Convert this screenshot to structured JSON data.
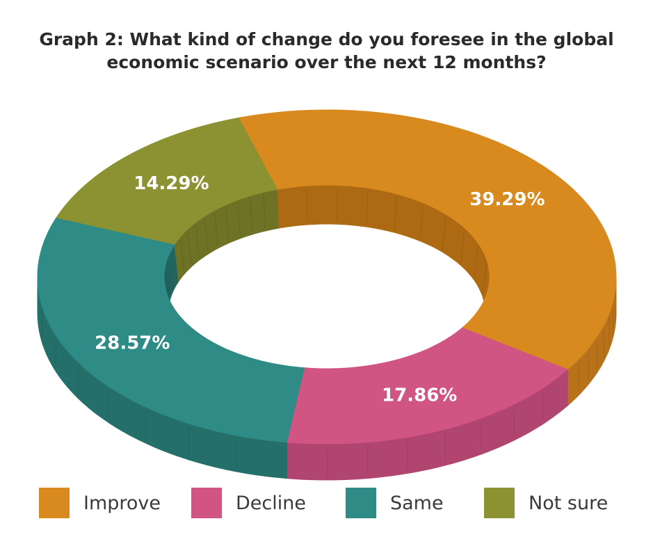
{
  "chart_data": {
    "type": "pie",
    "title_lines": [
      "Graph 2: What kind of change do you foresee in the global",
      "economic scenario over the next 12 months?"
    ],
    "categories": [
      "Improve",
      "Decline",
      "Same",
      "Not sure"
    ],
    "values": [
      39.29,
      17.86,
      28.57,
      14.29
    ],
    "data_labels": [
      "39.29%",
      "17.86%",
      "28.57%",
      "14.29%"
    ],
    "colors": [
      "#d98a1e",
      "#d05583",
      "#2f8b86",
      "#8c9131"
    ],
    "side_colors": [
      "#b8731a",
      "#b04670",
      "#256f6b",
      "#757a29"
    ],
    "inner_wall_colors": [
      "#ad6a12",
      "#a24068",
      "#236863",
      "#6d7224"
    ],
    "legend": [
      "Improve",
      "Decline",
      "Same",
      "Not sure"
    ],
    "legend_position": "bottom",
    "style": "3d-donut"
  }
}
